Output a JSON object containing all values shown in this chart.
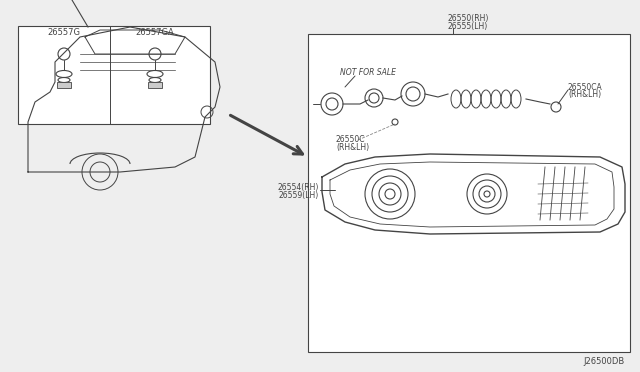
{
  "bg_color": "#eeeeee",
  "white": "#ffffff",
  "dark": "#444444",
  "gray": "#888888",
  "light_gray": "#cccccc",
  "labels": {
    "top_label1": "26550(RH)",
    "top_label2": "26555(LH)",
    "ca_label1": "26550CA",
    "ca_label2": "(RH&LH)",
    "c_label1": "26550C",
    "c_label2": "(RH&LH)",
    "not_for_sale": "NOT FOR SALE",
    "rh_lh_label1": "26554(RH)",
    "rh_lh_label2": "26559(LH)",
    "clip1": "26557G",
    "clip2": "26557GA",
    "diagram_code": "J26500DB"
  }
}
